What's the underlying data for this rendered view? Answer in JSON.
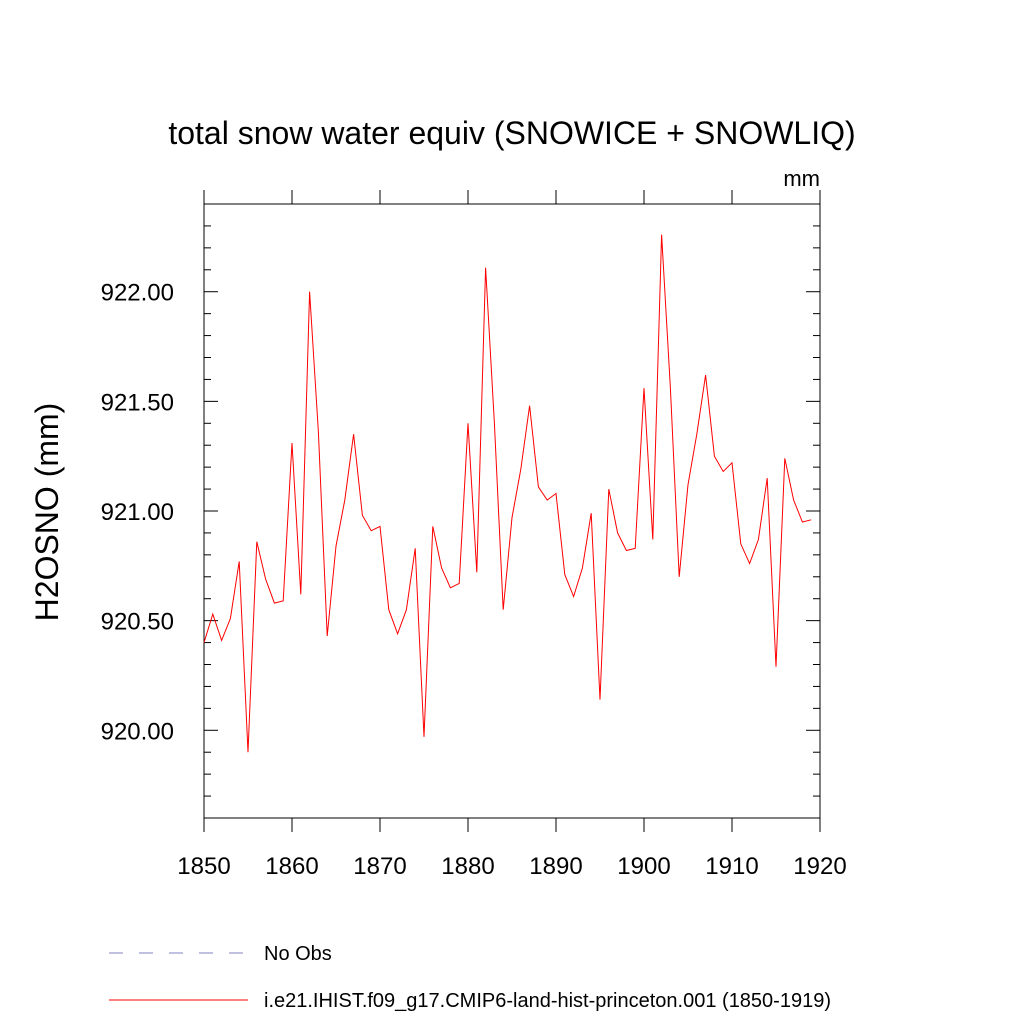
{
  "chart_data": {
    "type": "line",
    "title": "total snow water equiv (SNOWICE + SNOWLIQ)",
    "units": "mm",
    "ylabel": "H2OSNO  (mm)",
    "xlabel": "",
    "xlim": [
      1850,
      1920
    ],
    "ylim": [
      919.6,
      922.4
    ],
    "x_ticks": [
      "1850",
      "1860",
      "1870",
      "1880",
      "1890",
      "1900",
      "1910",
      "1920"
    ],
    "y_ticks": [
      "920.00",
      "920.50",
      "921.00",
      "921.50",
      "922.00"
    ],
    "grid": false,
    "legend_position": "bottom",
    "legend": [
      {
        "label": "No Obs",
        "color": "#8080c0",
        "style": "dashed"
      },
      {
        "label": "i.e21.IHIST.f09_g17.CMIP6-land-hist-princeton.001 (1850-1919)",
        "color": "#ff0000",
        "style": "solid"
      }
    ],
    "series": [
      {
        "name": "i.e21.IHIST.f09_g17.CMIP6-land-hist-princeton.001 (1850-1919)",
        "color": "#ff0000",
        "x": [
          1850,
          1851,
          1852,
          1853,
          1854,
          1855,
          1856,
          1857,
          1858,
          1859,
          1860,
          1861,
          1862,
          1863,
          1864,
          1865,
          1866,
          1867,
          1868,
          1869,
          1870,
          1871,
          1872,
          1873,
          1874,
          1875,
          1876,
          1877,
          1878,
          1879,
          1880,
          1881,
          1882,
          1883,
          1884,
          1885,
          1886,
          1887,
          1888,
          1889,
          1890,
          1891,
          1892,
          1893,
          1894,
          1895,
          1896,
          1897,
          1898,
          1899,
          1900,
          1901,
          1902,
          1903,
          1904,
          1905,
          1906,
          1907,
          1908,
          1909,
          1910,
          1911,
          1912,
          1913,
          1914,
          1915,
          1916,
          1917,
          1918,
          1919
        ],
        "values": [
          920.4,
          920.53,
          920.41,
          920.51,
          920.77,
          919.9,
          920.86,
          920.69,
          920.58,
          920.59,
          921.31,
          920.62,
          922.0,
          921.36,
          920.43,
          920.84,
          921.05,
          921.35,
          920.98,
          920.91,
          920.93,
          920.55,
          920.44,
          920.55,
          920.83,
          919.97,
          920.93,
          920.74,
          920.65,
          920.67,
          921.4,
          920.72,
          922.11,
          921.4,
          920.55,
          920.97,
          921.19,
          921.48,
          921.11,
          921.05,
          921.08,
          920.71,
          920.61,
          920.74,
          920.99,
          920.14,
          921.1,
          920.9,
          920.82,
          920.83,
          921.56,
          920.87,
          922.26,
          921.56,
          920.7,
          921.12,
          921.35,
          921.62,
          921.25,
          921.18,
          921.22,
          920.85,
          920.76,
          920.87,
          921.15,
          920.29,
          921.24,
          921.05,
          920.95,
          920.96
        ]
      }
    ]
  }
}
